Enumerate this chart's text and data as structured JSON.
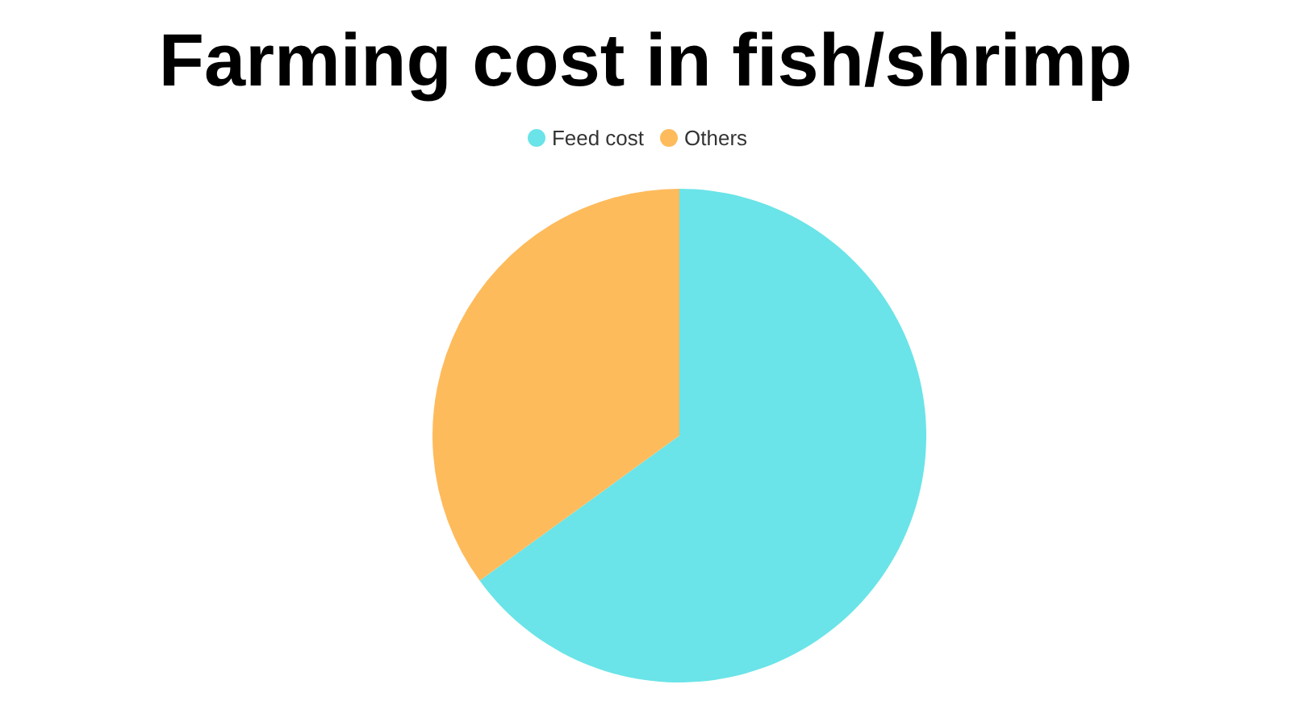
{
  "chart_data": {
    "type": "pie",
    "title": "Farming cost in fish/shrimp",
    "categories": [
      "Feed cost",
      "Others"
    ],
    "values": [
      65,
      35
    ],
    "colors": [
      "#6ae4e8",
      "#febb5c"
    ],
    "legend": "top"
  }
}
